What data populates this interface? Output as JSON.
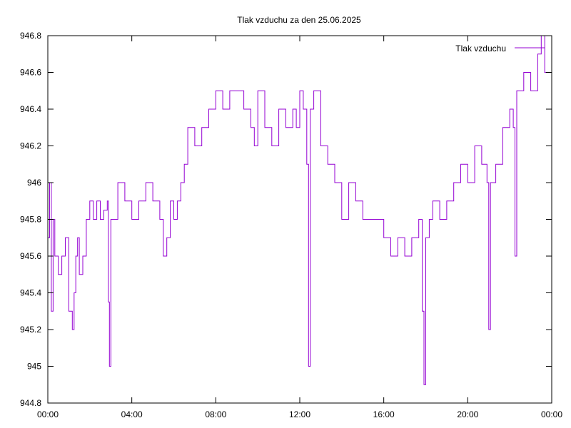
{
  "chart_data": {
    "type": "line",
    "title": "Tlak vzduchu za den 25.06.2025",
    "xlabel": "",
    "ylabel": "",
    "x_unit": "minutes",
    "xlim": [
      0,
      1440
    ],
    "ylim": [
      944.8,
      946.8
    ],
    "x_ticks": [
      {
        "value": 0,
        "label": "00:00"
      },
      {
        "value": 240,
        "label": "04:00"
      },
      {
        "value": 480,
        "label": "08:00"
      },
      {
        "value": 720,
        "label": "12:00"
      },
      {
        "value": 960,
        "label": "16:00"
      },
      {
        "value": 1200,
        "label": "20:00"
      },
      {
        "value": 1440,
        "label": "00:00"
      }
    ],
    "y_ticks": [
      {
        "value": 944.8,
        "label": "944.8"
      },
      {
        "value": 945.0,
        "label": "945"
      },
      {
        "value": 945.2,
        "label": "945.2"
      },
      {
        "value": 945.4,
        "label": "945.4"
      },
      {
        "value": 945.6,
        "label": "945.6"
      },
      {
        "value": 945.8,
        "label": "945.8"
      },
      {
        "value": 946.0,
        "label": "946"
      },
      {
        "value": 946.2,
        "label": "946.2"
      },
      {
        "value": 946.4,
        "label": "946.4"
      },
      {
        "value": 946.6,
        "label": "946.6"
      },
      {
        "value": 946.8,
        "label": "946.8"
      }
    ],
    "grid": false,
    "legend_position": "top-right",
    "series_color": "#9400d3",
    "series": [
      {
        "name": "Tlak vzduchu",
        "x": [
          0,
          5,
          10,
          15,
          20,
          30,
          40,
          50,
          60,
          70,
          75,
          80,
          85,
          90,
          100,
          110,
          120,
          130,
          140,
          150,
          160,
          170,
          173,
          176,
          180,
          200,
          220,
          240,
          260,
          280,
          300,
          320,
          330,
          340,
          350,
          360,
          370,
          380,
          390,
          400,
          420,
          440,
          460,
          480,
          500,
          520,
          540,
          560,
          580,
          590,
          600,
          620,
          640,
          660,
          680,
          700,
          710,
          720,
          730,
          740,
          745,
          750,
          760,
          780,
          800,
          820,
          840,
          860,
          880,
          900,
          940,
          960,
          980,
          1000,
          1020,
          1040,
          1060,
          1070,
          1075,
          1080,
          1090,
          1100,
          1120,
          1140,
          1160,
          1180,
          1200,
          1220,
          1240,
          1255,
          1260,
          1265,
          1280,
          1300,
          1320,
          1330,
          1335,
          1340,
          1360,
          1380,
          1400,
          1410,
          1420,
          1440
        ],
        "values": [
          945.7,
          946.0,
          945.3,
          945.8,
          945.6,
          945.5,
          945.6,
          945.7,
          945.3,
          945.2,
          945.4,
          945.6,
          945.7,
          945.5,
          945.6,
          945.8,
          945.9,
          945.8,
          945.9,
          945.8,
          945.85,
          945.9,
          945.35,
          945.0,
          945.8,
          946.0,
          945.9,
          945.8,
          945.9,
          946.0,
          945.9,
          945.8,
          945.6,
          945.7,
          945.9,
          945.8,
          945.9,
          946.0,
          946.1,
          946.3,
          946.2,
          946.3,
          946.4,
          946.5,
          946.4,
          946.5,
          946.5,
          946.4,
          946.3,
          946.2,
          946.5,
          946.3,
          946.2,
          946.4,
          946.3,
          946.4,
          946.3,
          946.5,
          946.4,
          946.1,
          945.0,
          946.4,
          946.5,
          946.2,
          946.1,
          946.0,
          945.8,
          946.0,
          945.9,
          945.8,
          945.8,
          945.7,
          945.6,
          945.7,
          945.6,
          945.7,
          945.8,
          945.3,
          944.9,
          945.7,
          945.8,
          945.9,
          945.8,
          945.9,
          946.0,
          946.1,
          946.0,
          946.2,
          946.1,
          946.0,
          945.2,
          946.0,
          946.1,
          946.3,
          946.4,
          946.3,
          945.6,
          946.5,
          946.6,
          946.5,
          946.7,
          946.8,
          946.6,
          946.5
        ]
      }
    ]
  }
}
